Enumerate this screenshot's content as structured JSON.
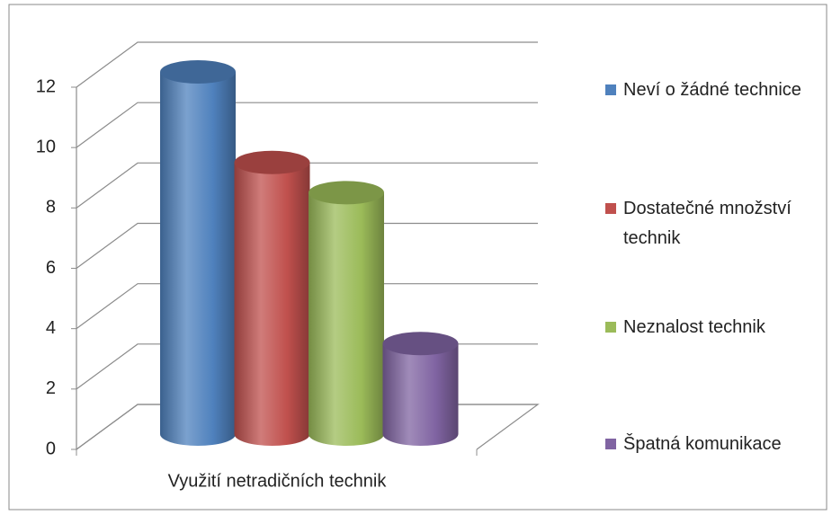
{
  "chart_data": {
    "type": "bar3d",
    "categories": [
      "Využití netradičních technik"
    ],
    "series": [
      {
        "name": "Neví o žádné technice",
        "color": "#4f81bd",
        "values": [
          12
        ]
      },
      {
        "name": "Dostatečné množství technik",
        "color": "#c0504d",
        "values": [
          9
        ]
      },
      {
        "name": "Neznalost technik",
        "color": "#9bbb59",
        "values": [
          8
        ]
      },
      {
        "name": "Špatná komunikace",
        "color": "#8064a2",
        "values": [
          3
        ]
      }
    ],
    "ylim": [
      0,
      12
    ],
    "yticks": [
      0,
      2,
      4,
      6,
      8,
      10,
      12
    ],
    "grid": true,
    "legend": "right"
  }
}
